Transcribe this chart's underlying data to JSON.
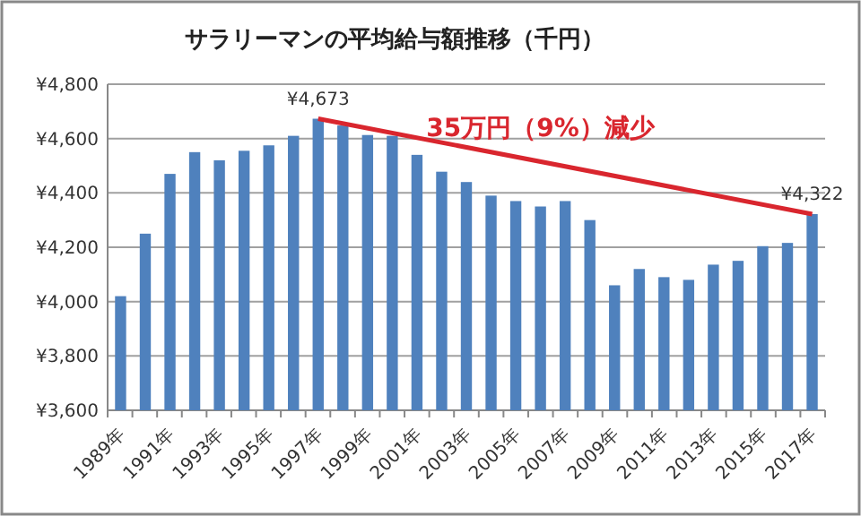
{
  "chart_data": {
    "type": "bar",
    "title": "サラリーマンの平均給与額推移（千円）",
    "categories": [
      "1989年",
      null,
      "1991年",
      null,
      "1993年",
      null,
      "1995年",
      null,
      "1997年",
      null,
      "1999年",
      null,
      "2001年",
      null,
      "2003年",
      null,
      "2005年",
      null,
      "2007年",
      null,
      "2009年",
      null,
      "2011年",
      null,
      "2013年",
      null,
      "2015年",
      null,
      "2017年"
    ],
    "series": [
      {
        "color": "#4f81bd",
        "values": [
          4020,
          4250,
          4470,
          4550,
          4520,
          4555,
          4575,
          4610,
          4673,
          4648,
          4613,
          4610,
          4540,
          4478,
          4440,
          4390,
          4370,
          4350,
          4370,
          4300,
          4060,
          4120,
          4090,
          4080,
          4136,
          4150,
          4204,
          4216,
          4322
        ]
      },
      {
        "type": "line",
        "color": "#d9262e",
        "x": [
          "1997年",
          "2017年"
        ],
        "values": [
          4673,
          4322
        ]
      }
    ],
    "ylim": [
      3600,
      4800
    ],
    "yticks": [
      {
        "value": 3600,
        "label": "¥3,600"
      },
      {
        "value": 3800,
        "label": "¥3,800"
      },
      {
        "value": 4000,
        "label": "¥4,000"
      },
      {
        "value": 4200,
        "label": "¥4,200"
      },
      {
        "value": 4400,
        "label": "¥4,400"
      },
      {
        "value": 4600,
        "label": "¥4,600"
      },
      {
        "value": 4800,
        "label": "¥4,800"
      }
    ],
    "grid": "y",
    "annotations": [
      {
        "text": "¥4,673",
        "x": "1997年",
        "y": 4673
      },
      {
        "text": "¥4,322",
        "x": "2017年",
        "y": 4322
      },
      "35万円（9%）減少"
    ]
  }
}
